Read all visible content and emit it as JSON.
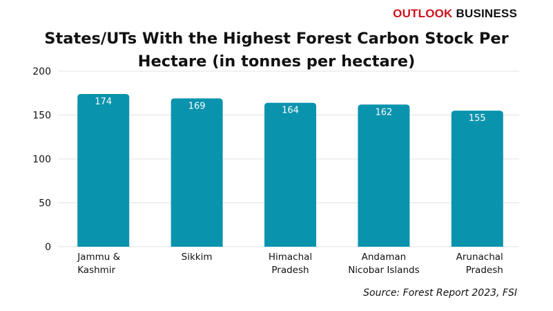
{
  "logo": {
    "part1": "OUTLOOK",
    "part2": "BUSINESS"
  },
  "source": "Source: Forest Report 2023, FSI",
  "colors": {
    "bar": "#0a93ad",
    "grid": "#e3e3e3",
    "brand": "#d0111b"
  },
  "chart_data": {
    "type": "bar",
    "title": "States/UTs With the Highest Forest Carbon Stock Per Hectare (in tonnes per hectare)",
    "categories": [
      [
        "Jammu &",
        "Kashmir"
      ],
      [
        "Sikkim"
      ],
      [
        "Himachal",
        "Pradesh"
      ],
      [
        "Andaman",
        "Nicobar Islands"
      ],
      [
        "Arunachal",
        "Pradesh"
      ]
    ],
    "values": [
      174,
      169,
      164,
      162,
      155
    ],
    "yticks": [
      0,
      50,
      100,
      150,
      200
    ],
    "ylim": [
      0,
      200
    ],
    "xlabel": "",
    "ylabel": "",
    "grid": true
  }
}
